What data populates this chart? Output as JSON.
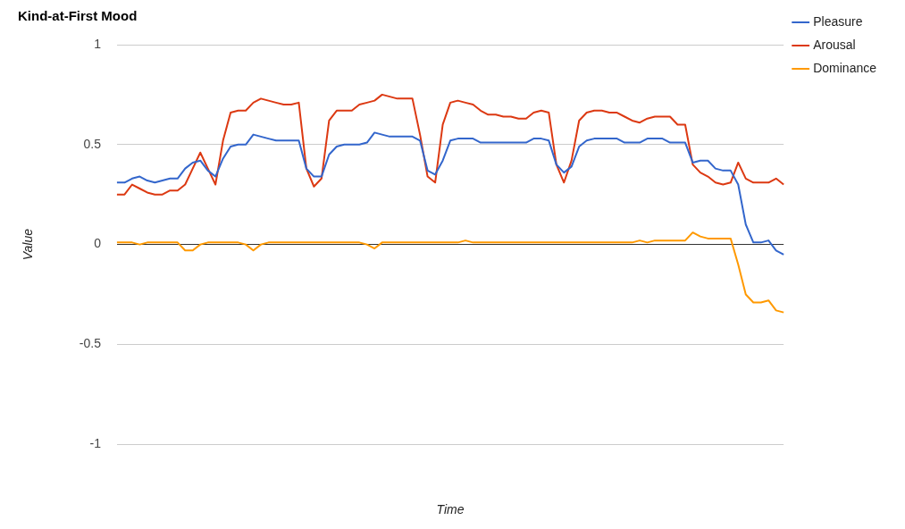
{
  "chart_data": {
    "type": "line",
    "title": "Kind-at-First Mood",
    "xlabel": "Time",
    "ylabel": "Value",
    "categories": [
      null,
      null,
      null,
      null,
      null,
      null,
      null,
      null,
      null,
      null,
      null,
      null,
      null,
      null,
      null,
      null,
      null,
      null,
      null,
      null,
      null,
      null,
      null,
      null,
      null,
      null,
      null,
      null,
      null,
      null,
      null,
      null,
      null,
      null,
      null,
      null,
      null,
      null,
      null,
      null,
      null,
      null,
      null,
      null,
      null,
      null,
      null,
      null,
      null,
      null,
      null,
      null,
      null,
      null,
      null,
      null,
      null,
      null,
      null,
      null,
      null,
      null,
      null,
      null,
      null,
      null,
      null,
      null,
      null,
      null,
      null,
      null,
      null,
      null,
      null,
      null,
      null,
      null,
      null,
      null,
      null,
      null,
      null,
      null,
      null,
      null,
      null,
      null,
      null
    ],
    "series": [
      {
        "name": "Pleasure",
        "color": "#3366cc",
        "values": [
          0.31,
          0.31,
          0.33,
          0.34,
          0.32,
          0.31,
          0.32,
          0.33,
          0.33,
          0.38,
          0.41,
          0.42,
          0.37,
          0.34,
          0.43,
          0.49,
          0.5,
          0.5,
          0.55,
          0.54,
          0.53,
          0.52,
          0.52,
          0.52,
          0.52,
          0.38,
          0.34,
          0.34,
          0.45,
          0.49,
          0.5,
          0.5,
          0.5,
          0.51,
          0.56,
          0.55,
          0.54,
          0.54,
          0.54,
          0.54,
          0.52,
          0.37,
          0.35,
          0.42,
          0.52,
          0.53,
          0.53,
          0.53,
          0.51,
          0.51,
          0.51,
          0.51,
          0.51,
          0.51,
          0.51,
          0.53,
          0.53,
          0.52,
          0.4,
          0.36,
          0.39,
          0.49,
          0.52,
          0.53,
          0.53,
          0.53,
          0.53,
          0.51,
          0.51,
          0.51,
          0.53,
          0.53,
          0.53,
          0.51,
          0.51,
          0.51,
          0.41,
          0.42,
          0.42,
          0.38,
          0.37,
          0.37,
          0.3,
          0.1,
          0.01,
          0.01,
          0.02,
          -0.03,
          -0.05
        ]
      },
      {
        "name": "Arousal",
        "color": "#dc3912",
        "values": [
          0.25,
          0.25,
          0.3,
          0.28,
          0.26,
          0.25,
          0.25,
          0.27,
          0.27,
          0.3,
          0.38,
          0.46,
          0.38,
          0.3,
          0.52,
          0.66,
          0.67,
          0.67,
          0.71,
          0.73,
          0.72,
          0.71,
          0.7,
          0.7,
          0.71,
          0.38,
          0.29,
          0.33,
          0.62,
          0.67,
          0.67,
          0.67,
          0.7,
          0.71,
          0.72,
          0.75,
          0.74,
          0.73,
          0.73,
          0.73,
          0.55,
          0.34,
          0.31,
          0.6,
          0.71,
          0.72,
          0.71,
          0.7,
          0.67,
          0.65,
          0.65,
          0.64,
          0.64,
          0.63,
          0.63,
          0.66,
          0.67,
          0.66,
          0.4,
          0.31,
          0.42,
          0.62,
          0.66,
          0.67,
          0.67,
          0.66,
          0.66,
          0.64,
          0.62,
          0.61,
          0.63,
          0.64,
          0.64,
          0.64,
          0.6,
          0.6,
          0.4,
          0.36,
          0.34,
          0.31,
          0.3,
          0.31,
          0.41,
          0.33,
          0.31,
          0.31,
          0.31,
          0.33,
          0.3
        ]
      },
      {
        "name": "Dominance",
        "color": "#ff9900",
        "values": [
          0.01,
          0.01,
          0.01,
          0.0,
          0.01,
          0.01,
          0.01,
          0.01,
          0.01,
          -0.03,
          -0.03,
          0.0,
          0.01,
          0.01,
          0.01,
          0.01,
          0.01,
          0.0,
          -0.03,
          0.0,
          0.01,
          0.01,
          0.01,
          0.01,
          0.01,
          0.01,
          0.01,
          0.01,
          0.01,
          0.01,
          0.01,
          0.01,
          0.01,
          0.0,
          -0.02,
          0.01,
          0.01,
          0.01,
          0.01,
          0.01,
          0.01,
          0.01,
          0.01,
          0.01,
          0.01,
          0.01,
          0.02,
          0.01,
          0.01,
          0.01,
          0.01,
          0.01,
          0.01,
          0.01,
          0.01,
          0.01,
          0.01,
          0.01,
          0.01,
          0.01,
          0.01,
          0.01,
          0.01,
          0.01,
          0.01,
          0.01,
          0.01,
          0.01,
          0.01,
          0.02,
          0.01,
          0.02,
          0.02,
          0.02,
          0.02,
          0.02,
          0.06,
          0.04,
          0.03,
          0.03,
          0.03,
          0.03,
          -0.1,
          -0.25,
          -0.29,
          -0.29,
          -0.28,
          -0.33,
          -0.34
        ]
      }
    ],
    "ylim": [
      -1,
      1
    ],
    "yticks": [
      -1,
      -0.5,
      0,
      0.5,
      1
    ],
    "grid": "y",
    "legend": "top right",
    "tick_labels": "y",
    "marker": "none",
    "line_style": "solid"
  }
}
